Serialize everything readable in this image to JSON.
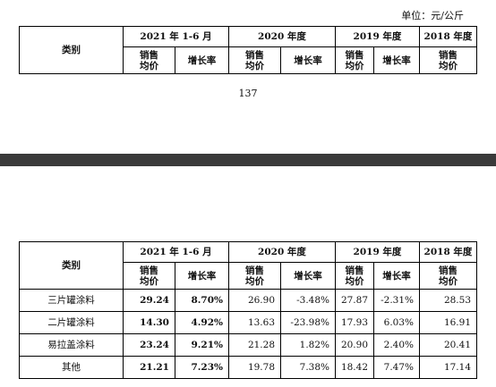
{
  "unit_label": "单位：元/公斤",
  "page_number": "137",
  "table1": {
    "category_header": "类别",
    "periods": [
      "2021 年 1-6 月",
      "2020 年度",
      "2019 年度",
      "2018 年度"
    ],
    "sub_headers": {
      "avg_price": "销售均价",
      "growth": "增长率"
    }
  },
  "table2": {
    "category_header": "类别",
    "periods": [
      "2021 年 1-6 月",
      "2020 年度",
      "2019 年度",
      "2018 年度"
    ],
    "sub_headers": {
      "avg_price": "销售均价",
      "growth": "增长率"
    },
    "rows": [
      {
        "name": "三片罐涂料",
        "p2021": "29.24",
        "g2021": "8.70%",
        "p2020": "26.90",
        "g2020": "-3.48%",
        "p2019": "27.87",
        "g2019": "-2.31%",
        "p2018": "28.53"
      },
      {
        "name": "二片罐涂料",
        "p2021": "14.30",
        "g2021": "4.92%",
        "p2020": "13.63",
        "g2020": "-23.98%",
        "p2019": "17.93",
        "g2019": "6.03%",
        "p2018": "16.91"
      },
      {
        "name": "易拉盖涂料",
        "p2021": "23.24",
        "g2021": "9.21%",
        "p2020": "21.28",
        "g2020": "1.82%",
        "p2019": "20.90",
        "g2019": "2.40%",
        "p2018": "20.41"
      },
      {
        "name": "其他",
        "p2021": "21.21",
        "g2021": "7.23%",
        "p2020": "19.78",
        "g2020": "7.38%",
        "p2019": "18.42",
        "g2019": "7.47%",
        "p2018": "17.14"
      }
    ]
  }
}
